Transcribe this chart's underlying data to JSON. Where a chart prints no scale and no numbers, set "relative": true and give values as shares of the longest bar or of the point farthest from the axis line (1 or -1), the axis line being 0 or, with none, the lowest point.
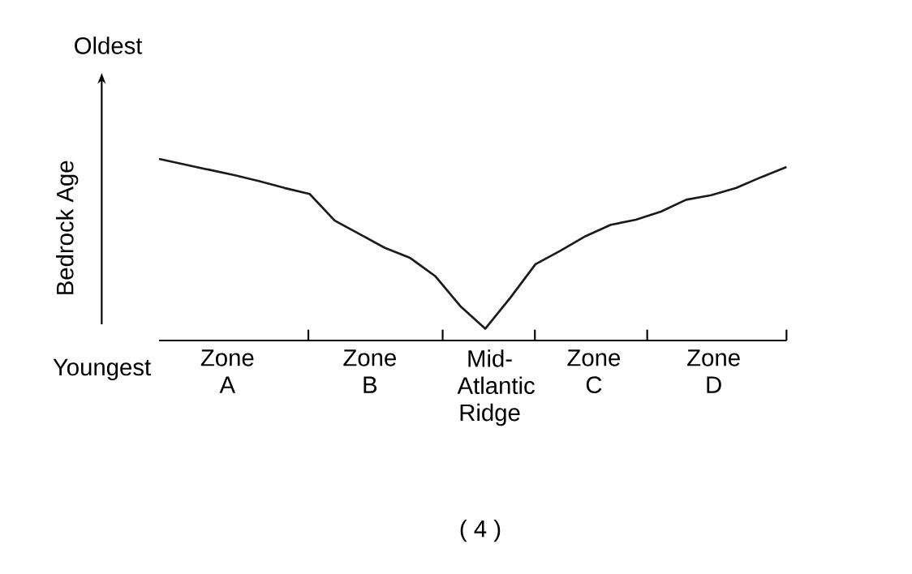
{
  "chart_data": {
    "type": "line",
    "relative": true,
    "ylabel": "Bedrock Age",
    "categories": [
      null,
      null,
      null,
      null,
      null,
      null,
      null,
      null,
      null,
      null,
      null,
      null,
      null,
      null,
      null,
      null,
      null,
      null,
      null,
      null,
      null,
      null,
      null,
      null,
      null,
      null
    ],
    "series": [
      {
        "color": "#1a1a1a",
        "values": [
          1.0,
          0.97,
          0.94,
          0.911,
          0.877,
          0.84,
          0.807,
          0.66,
          0.585,
          0.51,
          0.455,
          0.355,
          0.19,
          0.065,
          0.236,
          0.42,
          0.495,
          0.575,
          0.637,
          0.665,
          0.71,
          0.775,
          0.8,
          0.84,
          0.9,
          0.955
        ]
      }
    ],
    "annotations": [
      "Oldest",
      "Youngest",
      "Zone A",
      "Zone B",
      "Mid-Atlantic Ridge",
      "Zone C",
      "Zone D",
      "( 4 )"
    ],
    "marker": "none",
    "line_style": "solid"
  }
}
